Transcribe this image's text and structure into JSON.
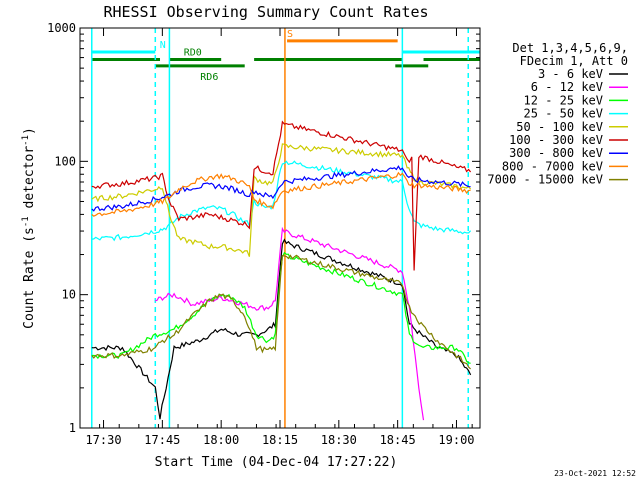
{
  "chart_data": {
    "type": "line",
    "title": "RHESSI Observing Summary Count Rates",
    "xlabel": "Start Time (04-Dec-04 17:27:22)",
    "ylabel_main": "Count Rate (s",
    "ylabel_sup1": "-1",
    "ylabel_mid": " detector",
    "ylabel_sup2": "-1",
    "ylabel_end": ")",
    "yscale": "log",
    "ylim": [
      1,
      1000
    ],
    "xlim_minutes": [
      17.4,
      19.1
    ],
    "y_ticks": [
      {
        "value": 1,
        "label": "1"
      },
      {
        "value": 10,
        "label": "10"
      },
      {
        "value": 100,
        "label": "100"
      },
      {
        "value": 1000,
        "label": "1000"
      }
    ],
    "x_ticks": [
      {
        "value": 17.5,
        "label": "17:30"
      },
      {
        "value": 17.75,
        "label": "17:45"
      },
      {
        "value": 18.0,
        "label": "18:00"
      },
      {
        "value": 18.25,
        "label": "18:15"
      },
      {
        "value": 18.5,
        "label": "18:30"
      },
      {
        "value": 18.75,
        "label": "18:45"
      },
      {
        "value": 19.0,
        "label": "19:00"
      }
    ],
    "legend_header": [
      "Det 1,3,4,5,6,9,",
      "FDecim 1, Att 0"
    ],
    "legend_position": "right",
    "series": [
      {
        "name": "3 - 6 keV",
        "color": "#000000",
        "points": [
          [
            17.45,
            4
          ],
          [
            17.58,
            4
          ],
          [
            17.72,
            2
          ],
          [
            17.74,
            1.2
          ],
          [
            17.8,
            4
          ],
          [
            17.9,
            4.5
          ],
          [
            18.0,
            5.5
          ],
          [
            18.08,
            5
          ],
          [
            18.15,
            5
          ],
          [
            18.2,
            5.5
          ],
          [
            18.23,
            6
          ],
          [
            18.26,
            25
          ],
          [
            18.77,
            12
          ],
          [
            18.8,
            6
          ],
          [
            18.85,
            5
          ],
          [
            18.92,
            4
          ],
          [
            19.0,
            3.5
          ],
          [
            19.06,
            2.5
          ]
        ]
      },
      {
        "name": "6 - 12 keV",
        "color": "#ff00ff",
        "points": [
          [
            17.72,
            9
          ],
          [
            17.75,
            9.5
          ],
          [
            17.8,
            10
          ],
          [
            17.88,
            8.5
          ],
          [
            17.95,
            9
          ],
          [
            18.0,
            9.5
          ],
          [
            18.05,
            9
          ],
          [
            18.1,
            8.5
          ],
          [
            18.15,
            8
          ],
          [
            18.2,
            8
          ],
          [
            18.23,
            9
          ],
          [
            18.26,
            30
          ],
          [
            18.77,
            15
          ],
          [
            18.8,
            8
          ],
          [
            18.84,
            2
          ],
          [
            18.86,
            1.2
          ]
        ]
      },
      {
        "name": "12 - 25 keV",
        "color": "#00ff00",
        "points": [
          [
            17.45,
            3.5
          ],
          [
            17.58,
            3.5
          ],
          [
            17.72,
            5
          ],
          [
            17.8,
            5.5
          ],
          [
            17.88,
            7
          ],
          [
            17.95,
            9
          ],
          [
            18.0,
            10
          ],
          [
            18.05,
            9.5
          ],
          [
            18.1,
            8
          ],
          [
            18.15,
            5
          ],
          [
            18.2,
            4.5
          ],
          [
            18.23,
            5
          ],
          [
            18.26,
            20
          ],
          [
            18.77,
            10
          ],
          [
            18.8,
            5
          ],
          [
            18.85,
            4
          ],
          [
            18.92,
            4
          ],
          [
            19.0,
            4
          ],
          [
            19.06,
            3
          ]
        ]
      },
      {
        "name": "25 - 50 keV",
        "color": "#00ffff",
        "points": [
          [
            17.45,
            26
          ],
          [
            17.58,
            27
          ],
          [
            17.72,
            30
          ],
          [
            17.75,
            31
          ],
          [
            17.78,
            33
          ],
          [
            17.82,
            38
          ],
          [
            17.88,
            42
          ],
          [
            17.95,
            45
          ],
          [
            18.0,
            44
          ],
          [
            18.05,
            40
          ],
          [
            18.1,
            35
          ],
          [
            18.12,
            34
          ],
          [
            18.14,
            50
          ],
          [
            18.18,
            45
          ],
          [
            18.22,
            46
          ],
          [
            18.26,
            100
          ],
          [
            18.77,
            70
          ],
          [
            18.79,
            50
          ],
          [
            18.82,
            35
          ],
          [
            18.85,
            33
          ],
          [
            18.92,
            31
          ],
          [
            19.0,
            30
          ],
          [
            19.06,
            29
          ]
        ]
      },
      {
        "name": "50 - 100 keV",
        "color": "#cccc00",
        "points": [
          [
            17.45,
            52
          ],
          [
            17.58,
            55
          ],
          [
            17.72,
            62
          ],
          [
            17.75,
            65
          ],
          [
            17.78,
            40
          ],
          [
            17.82,
            26
          ],
          [
            17.88,
            25
          ],
          [
            17.95,
            23
          ],
          [
            18.0,
            23
          ],
          [
            18.05,
            22
          ],
          [
            18.1,
            21
          ],
          [
            18.12,
            20
          ],
          [
            18.14,
            75
          ],
          [
            18.18,
            70
          ],
          [
            18.22,
            68
          ],
          [
            18.26,
            130
          ],
          [
            18.77,
            110
          ],
          [
            18.79,
            90
          ],
          [
            18.82,
            75
          ],
          [
            18.85,
            70
          ],
          [
            18.92,
            68
          ],
          [
            19.0,
            65
          ],
          [
            19.06,
            62
          ]
        ]
      },
      {
        "name": "100 - 300 keV",
        "color": "#cc0000",
        "points": [
          [
            17.45,
            65
          ],
          [
            17.58,
            68
          ],
          [
            17.72,
            75
          ],
          [
            17.75,
            78
          ],
          [
            17.78,
            50
          ],
          [
            17.82,
            37
          ],
          [
            17.88,
            38
          ],
          [
            17.95,
            40
          ],
          [
            18.0,
            38
          ],
          [
            18.05,
            36
          ],
          [
            18.1,
            34
          ],
          [
            18.12,
            33
          ],
          [
            18.14,
            90
          ],
          [
            18.18,
            85
          ],
          [
            18.22,
            82
          ],
          [
            18.26,
            190
          ],
          [
            18.77,
            120
          ],
          [
            18.79,
            100
          ],
          [
            18.81,
            105
          ],
          [
            18.82,
            15
          ],
          [
            18.84,
            110
          ],
          [
            18.92,
            100
          ],
          [
            19.0,
            90
          ],
          [
            19.06,
            85
          ]
        ]
      },
      {
        "name": "300 - 800 keV",
        "color": "#0000ff",
        "points": [
          [
            17.45,
            44
          ],
          [
            17.58,
            46
          ],
          [
            17.72,
            52
          ],
          [
            17.75,
            54
          ],
          [
            17.78,
            56
          ],
          [
            17.82,
            60
          ],
          [
            17.88,
            64
          ],
          [
            17.95,
            66
          ],
          [
            18.0,
            65
          ],
          [
            18.05,
            62
          ],
          [
            18.1,
            58
          ],
          [
            18.12,
            56
          ],
          [
            18.14,
            60
          ],
          [
            18.18,
            56
          ],
          [
            18.22,
            54
          ],
          [
            18.26,
            70
          ],
          [
            18.77,
            90
          ],
          [
            18.79,
            78
          ],
          [
            18.82,
            72
          ],
          [
            18.85,
            72
          ],
          [
            18.92,
            70
          ],
          [
            19.0,
            68
          ],
          [
            19.06,
            65
          ]
        ]
      },
      {
        "name": "800 - 7000 keV",
        "color": "#ff8000",
        "points": [
          [
            17.45,
            40
          ],
          [
            17.58,
            42
          ],
          [
            17.72,
            48
          ],
          [
            17.75,
            50
          ],
          [
            17.78,
            54
          ],
          [
            17.82,
            62
          ],
          [
            17.88,
            70
          ],
          [
            17.95,
            76
          ],
          [
            18.0,
            78
          ],
          [
            18.05,
            74
          ],
          [
            18.1,
            68
          ],
          [
            18.12,
            64
          ],
          [
            18.14,
            52
          ],
          [
            18.18,
            48
          ],
          [
            18.22,
            46
          ],
          [
            18.26,
            60
          ],
          [
            18.77,
            80
          ],
          [
            18.79,
            70
          ],
          [
            18.82,
            66
          ],
          [
            18.85,
            66
          ],
          [
            18.92,
            64
          ],
          [
            19.0,
            62
          ],
          [
            19.06,
            60
          ]
        ]
      },
      {
        "name": "7000 - 15000 keV",
        "color": "#808000",
        "points": [
          [
            17.45,
            3.5
          ],
          [
            17.58,
            3.5
          ],
          [
            17.72,
            4
          ],
          [
            17.75,
            4.5
          ],
          [
            17.8,
            5
          ],
          [
            17.88,
            7
          ],
          [
            17.95,
            9
          ],
          [
            18.0,
            10
          ],
          [
            18.05,
            9
          ],
          [
            18.1,
            7
          ],
          [
            18.15,
            4
          ],
          [
            18.2,
            3.8
          ],
          [
            18.23,
            4
          ],
          [
            18.26,
            20
          ],
          [
            18.77,
            12
          ],
          [
            18.8,
            8
          ],
          [
            18.85,
            6
          ],
          [
            18.92,
            4.5
          ],
          [
            19.0,
            3.5
          ],
          [
            19.06,
            2.8
          ]
        ]
      }
    ],
    "vertical_lines": [
      {
        "x": 17.45,
        "color": "#00ffff",
        "style": "solid"
      },
      {
        "x": 17.72,
        "color": "#00ffff",
        "style": "dashed"
      },
      {
        "x": 17.78,
        "color": "#00ffff",
        "style": "solid"
      },
      {
        "x": 18.271,
        "color": "#ff8000",
        "style": "solid"
      },
      {
        "x": 18.77,
        "color": "#00ffff",
        "style": "solid"
      },
      {
        "x": 19.05,
        "color": "#00ffff",
        "style": "dashed"
      }
    ],
    "flag_bars": [
      {
        "label": "N",
        "color": "#00ffff",
        "y": 660,
        "segments": [
          [
            17.45,
            17.72
          ],
          [
            18.77,
            19.1
          ]
        ]
      },
      {
        "label": "S",
        "color": "#ff8000",
        "y": 800,
        "segments": [
          [
            18.28,
            18.75
          ]
        ]
      },
      {
        "label": "RD0",
        "color": "#008000",
        "y": 580,
        "segments": [
          [
            17.45,
            17.74
          ],
          [
            17.78,
            18.0
          ],
          [
            18.14,
            18.77
          ],
          [
            18.86,
            19.1
          ]
        ]
      },
      {
        "label": "RD6",
        "color": "#008000",
        "y": 520,
        "segments": [
          [
            17.72,
            18.1
          ],
          [
            18.74,
            18.88
          ]
        ]
      }
    ]
  },
  "timestamp": "23-Oct-2021 12:52"
}
